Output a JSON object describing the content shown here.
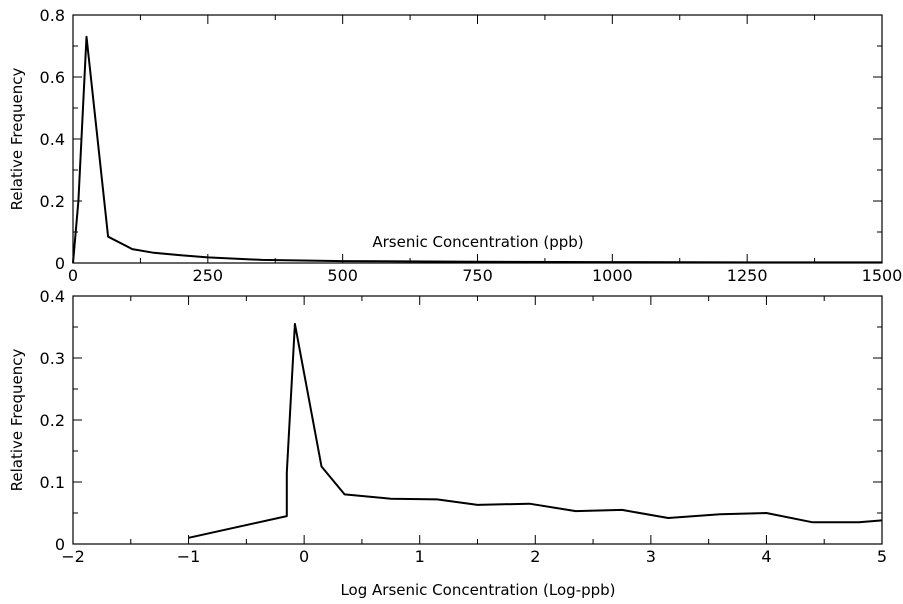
{
  "chart_data": [
    {
      "type": "line",
      "title": "",
      "xlabel": "Arsenic Concentration (ppb)",
      "ylabel": "Relative Frequency",
      "xlim": [
        0,
        1500
      ],
      "ylim": [
        0,
        0.8
      ],
      "x_ticks": [
        0,
        250,
        500,
        750,
        1000,
        1250,
        1500
      ],
      "y_ticks": [
        0,
        0.2,
        0.4,
        0.6,
        0.8
      ],
      "y_tick_labels": [
        "0",
        "0.2",
        "0.4",
        "0.6",
        "0.8"
      ],
      "grid": false,
      "series": [
        {
          "x": [
            0,
            10,
            25,
            65,
            110,
            150,
            200,
            250,
            350,
            500,
            750,
            1000,
            1250,
            1500
          ],
          "y": [
            0.0,
            0.2,
            0.73,
            0.085,
            0.045,
            0.033,
            0.025,
            0.018,
            0.01,
            0.006,
            0.004,
            0.003,
            0.002,
            0.002
          ]
        }
      ]
    },
    {
      "type": "line",
      "title": "",
      "xlabel": "Log Arsenic Concentration (Log-ppb)",
      "ylabel": "Relative Frequency",
      "xlim": [
        -2,
        5
      ],
      "ylim": [
        0,
        0.4
      ],
      "x_ticks": [
        -2,
        -1,
        0,
        1,
        2,
        3,
        4,
        5
      ],
      "x_tick_labels": [
        "−2",
        "−1",
        "0",
        "1",
        "2",
        "3",
        "4",
        "5"
      ],
      "y_ticks": [
        0,
        0.1,
        0.2,
        0.3,
        0.4
      ],
      "y_tick_labels": [
        "0",
        "0.1",
        "0.2",
        "0.3",
        "0.4"
      ],
      "grid": false,
      "series": [
        {
          "x": [
            -1.0,
            -0.15,
            -0.15,
            -0.08,
            0.15,
            0.35,
            0.75,
            1.15,
            1.5,
            1.95,
            2.35,
            2.75,
            3.15,
            3.6,
            4.0,
            4.4,
            4.8,
            5.0
          ],
          "y": [
            0.01,
            0.045,
            0.115,
            0.355,
            0.125,
            0.08,
            0.073,
            0.072,
            0.063,
            0.065,
            0.053,
            0.055,
            0.042,
            0.048,
            0.05,
            0.035,
            0.035,
            0.038
          ]
        }
      ]
    }
  ]
}
